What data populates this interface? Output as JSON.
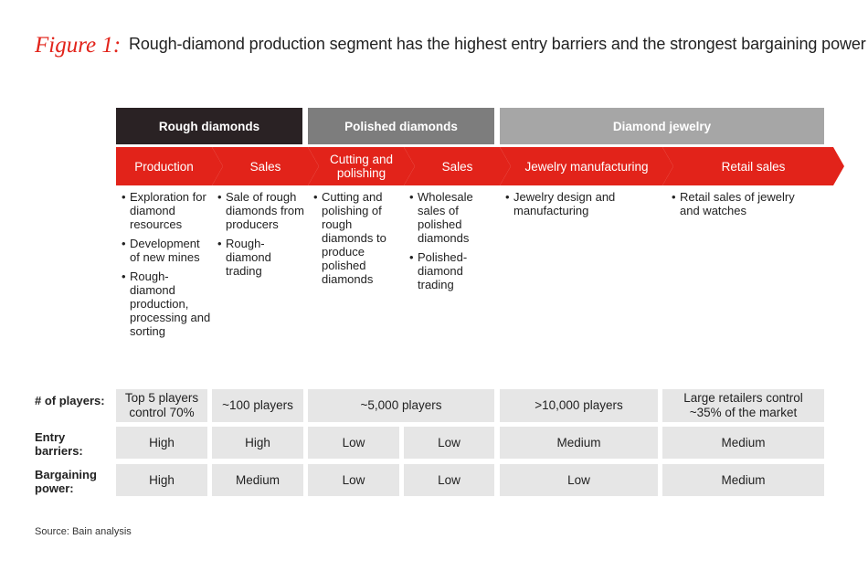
{
  "title": {
    "figure_label": "Figure 1:",
    "text": "Rough-diamond production segment has the highest entry barriers and the strongest bargaining power"
  },
  "colors": {
    "accent_red": "#e2231a",
    "rough_header": "#2a2224",
    "polished_header": "#7d7d7d",
    "jewelry_header": "#a6a6a6",
    "cell_bg": "#e6e6e6"
  },
  "segments": [
    {
      "label": "Rough diamonds"
    },
    {
      "label": "Polished diamonds"
    },
    {
      "label": "Diamond jewelry"
    }
  ],
  "stages": [
    {
      "label": "Production",
      "bullets": [
        "Exploration for diamond resources",
        "Development of new mines",
        "Rough-diamond production, processing and sorting"
      ]
    },
    {
      "label": "Sales",
      "bullets": [
        "Sale of rough diamonds from producers",
        "Rough-diamond trading"
      ]
    },
    {
      "label": "Cutting and polishing",
      "bullets": [
        "Cutting and polishing of rough diamonds to produce polished diamonds"
      ]
    },
    {
      "label": "Sales",
      "bullets": [
        "Wholesale sales of polished diamonds",
        "Polished-diamond trading"
      ]
    },
    {
      "label": "Jewelry manufacturing",
      "bullets": [
        "Jewelry design and manufacturing"
      ]
    },
    {
      "label": "Retail sales",
      "bullets": [
        "Retail sales of jewelry and watches"
      ]
    }
  ],
  "table": {
    "rows": [
      {
        "label": "# of players:",
        "cells": [
          "Top 5 players control 70%",
          "~100 players",
          "~5,000 players",
          ">10,000 players",
          "Large retailers control ~35% of the market"
        ]
      },
      {
        "label": "Entry barriers:",
        "cells": [
          "High",
          "High",
          "Low",
          "Low",
          "Medium",
          "Medium"
        ]
      },
      {
        "label": "Bargaining power:",
        "cells": [
          "High",
          "Medium",
          "Low",
          "Low",
          "Low",
          "Medium"
        ]
      }
    ]
  },
  "source": "Source: Bain analysis"
}
